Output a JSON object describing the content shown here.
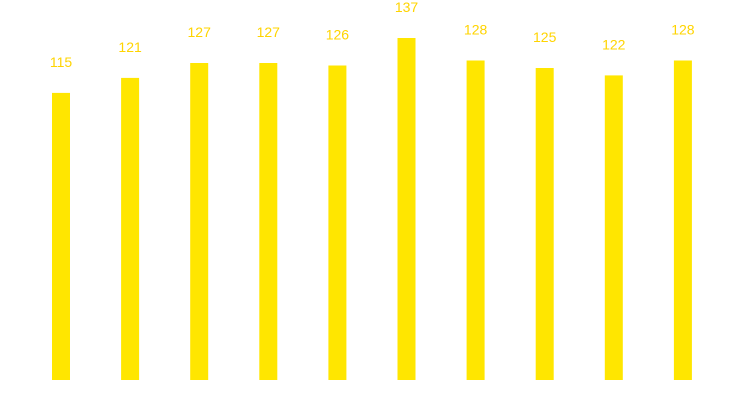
{
  "chart_data": {
    "type": "bar",
    "categories": [
      "",
      "",
      "",
      "",
      "",
      "",
      "",
      "",
      "",
      ""
    ],
    "values": [
      115,
      121,
      127,
      127,
      126,
      137,
      128,
      125,
      122,
      128
    ],
    "data_labels": [
      "115",
      "121",
      "127",
      "127",
      "126",
      "137",
      "128",
      "125",
      "122",
      "128"
    ],
    "title": "",
    "xlabel": "",
    "ylabel": "",
    "ylim": [
      0,
      137
    ],
    "grid": false,
    "legend": "none",
    "colors": {
      "bar": "#FFE600",
      "label": "#FFD400",
      "background": "#FFFFFF"
    }
  }
}
